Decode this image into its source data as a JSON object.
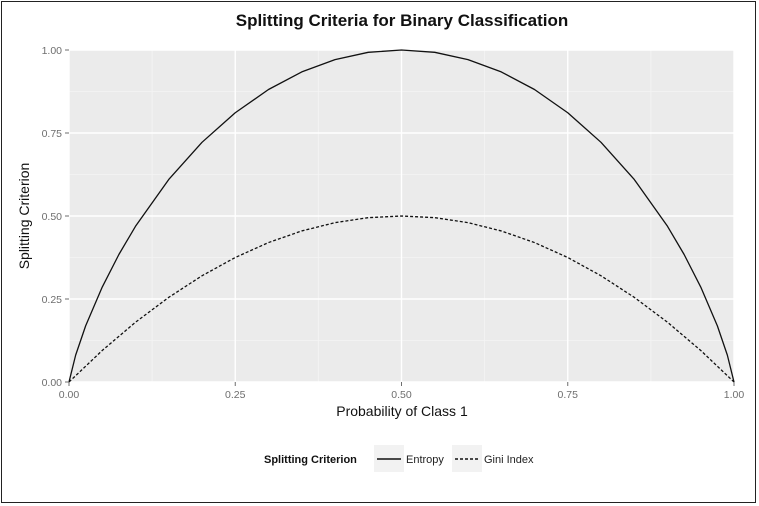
{
  "chart_data": {
    "type": "line",
    "title": "Splitting Criteria for Binary Classification",
    "xlabel": "Probability of Class 1",
    "ylabel": "Splitting Criterion",
    "xlim": [
      0,
      1
    ],
    "ylim": [
      0,
      1
    ],
    "x_ticks": [
      "0.00",
      "0.25",
      "0.50",
      "0.75",
      "1.00"
    ],
    "y_ticks": [
      "0.00",
      "0.25",
      "0.50",
      "0.75",
      "1.00"
    ],
    "grid": true,
    "legend": {
      "title": "Splitting Criterion",
      "position": "bottom"
    },
    "series": [
      {
        "name": "Entropy",
        "linestyle": "solid",
        "x": [
          0.0,
          0.01,
          0.025,
          0.05,
          0.075,
          0.1,
          0.15,
          0.2,
          0.25,
          0.3,
          0.35,
          0.4,
          0.45,
          0.5,
          0.55,
          0.6,
          0.65,
          0.7,
          0.75,
          0.8,
          0.85,
          0.9,
          0.925,
          0.95,
          0.975,
          0.99,
          1.0
        ],
        "values": [
          0.0,
          0.081,
          0.169,
          0.286,
          0.384,
          0.469,
          0.61,
          0.722,
          0.811,
          0.881,
          0.934,
          0.971,
          0.993,
          1.0,
          0.993,
          0.971,
          0.934,
          0.881,
          0.811,
          0.722,
          0.61,
          0.469,
          0.384,
          0.286,
          0.169,
          0.081,
          0.0
        ]
      },
      {
        "name": "Gini Index",
        "linestyle": "dashed",
        "x": [
          0.0,
          0.05,
          0.1,
          0.15,
          0.2,
          0.25,
          0.3,
          0.35,
          0.4,
          0.45,
          0.5,
          0.55,
          0.6,
          0.65,
          0.7,
          0.75,
          0.8,
          0.85,
          0.9,
          0.95,
          1.0
        ],
        "values": [
          0.0,
          0.095,
          0.18,
          0.255,
          0.32,
          0.375,
          0.42,
          0.455,
          0.48,
          0.495,
          0.5,
          0.495,
          0.48,
          0.455,
          0.42,
          0.375,
          0.32,
          0.255,
          0.18,
          0.095,
          0.0
        ]
      }
    ]
  }
}
